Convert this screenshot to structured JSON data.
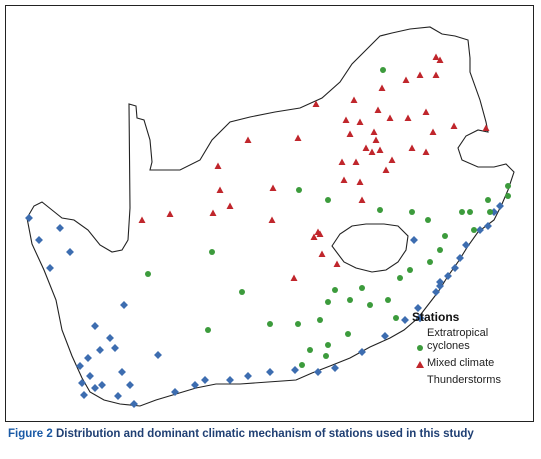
{
  "caption": {
    "figure_label": "Figure 2",
    "text": "Distribution and dominant climatic mechanism of stations used in this study"
  },
  "legend": {
    "title": "Stations",
    "items": [
      {
        "label": "Extratropical cyclones",
        "symbol": "diamond",
        "color": "#3d6db0"
      },
      {
        "label": "Mixed climate",
        "symbol": "circle",
        "color": "#3c9b3c"
      },
      {
        "label": "Thunderstorms",
        "symbol": "triangle",
        "color": "#c0262c"
      }
    ]
  }
}
